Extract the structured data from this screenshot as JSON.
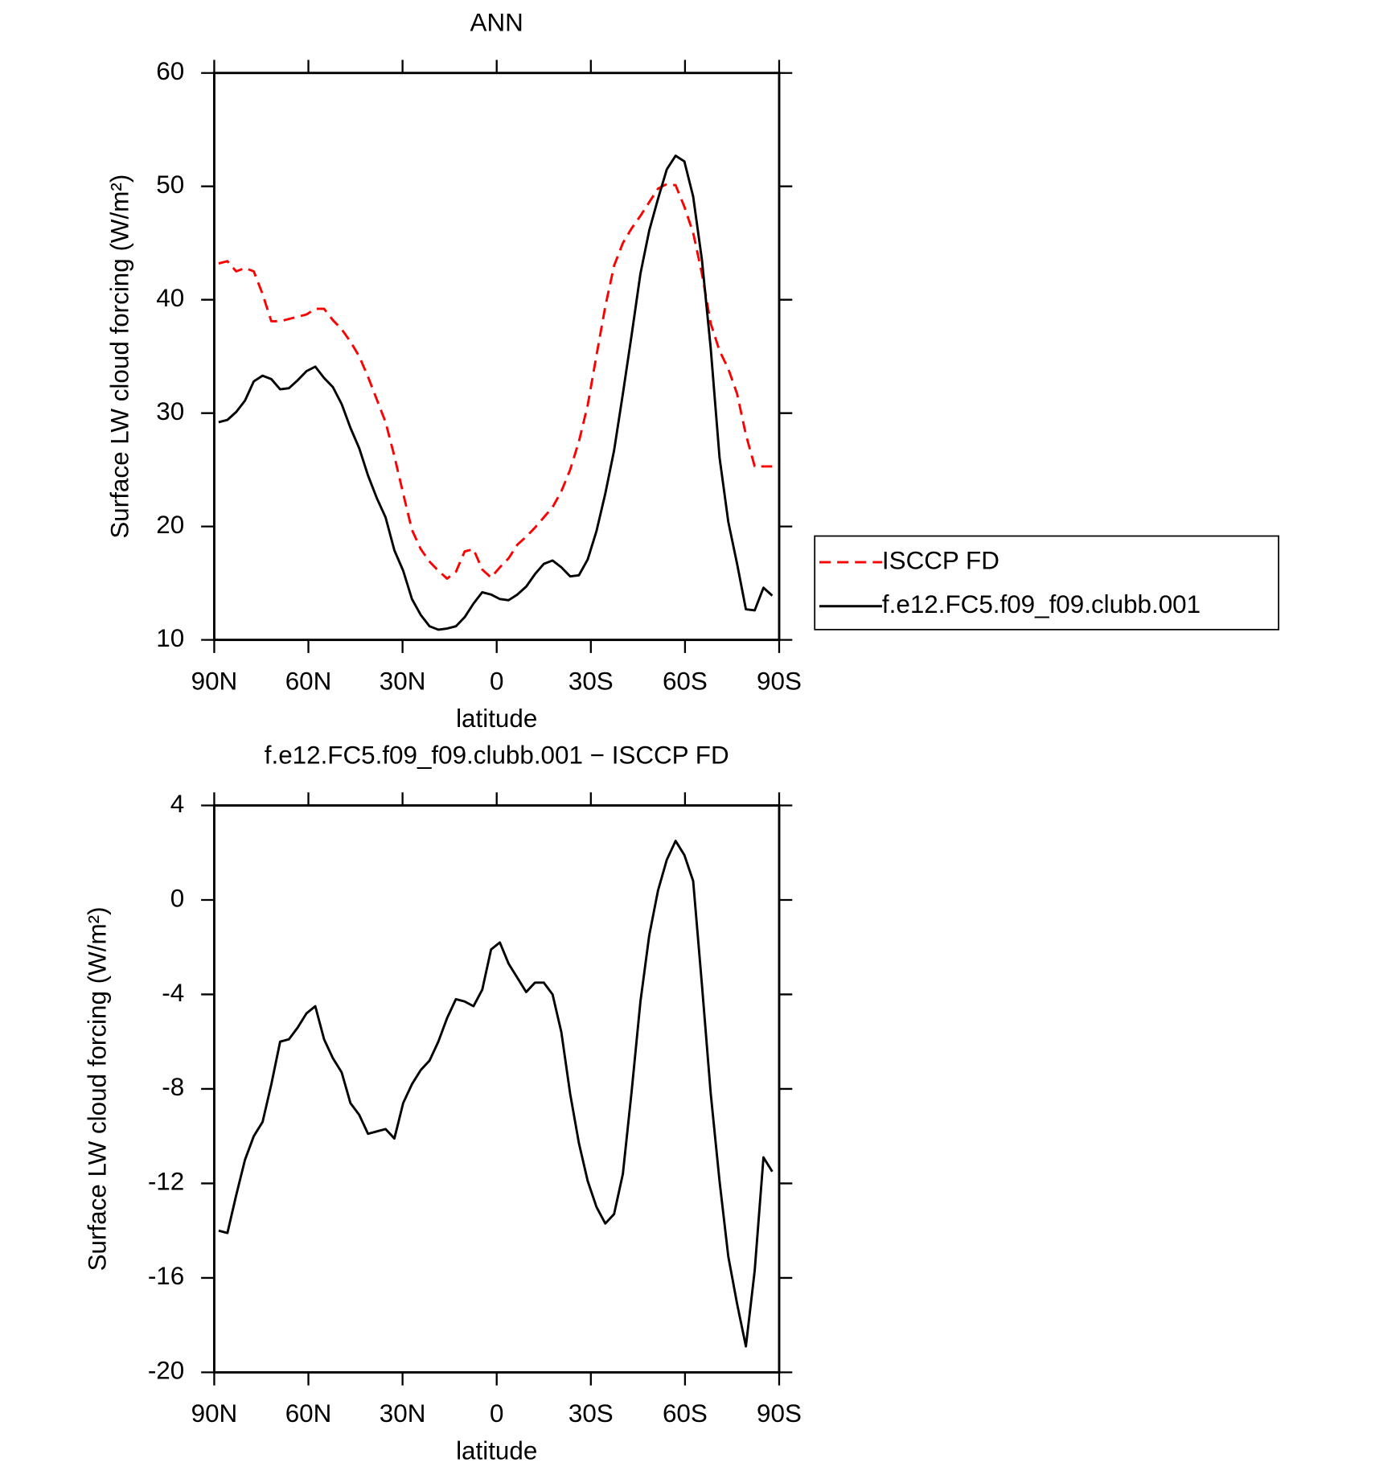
{
  "chart_data": [
    {
      "type": "line",
      "title": "ANN",
      "xlabel": "latitude",
      "ylabel": "Surface LW cloud forcing (W/m²)",
      "x": [
        88.6,
        85.8,
        83,
        80.2,
        77.4,
        74.6,
        71.8,
        69,
        66.2,
        63.4,
        60.6,
        57.8,
        55,
        52.2,
        49.4,
        46.6,
        43.8,
        41,
        38.2,
        35.4,
        32.6,
        29.8,
        27,
        24.2,
        21.4,
        18.6,
        15.8,
        13,
        10.2,
        7.4,
        4.6,
        1.8,
        -1,
        -3.8,
        -6.6,
        -9.4,
        -12.2,
        -15,
        -17.8,
        -20.6,
        -23.4,
        -26.2,
        -29,
        -31.8,
        -34.6,
        -37.4,
        -40.2,
        -43,
        -45.8,
        -48.6,
        -51.4,
        -54.2,
        -57,
        -59.8,
        -62.6,
        -65.4,
        -68.2,
        -71,
        -73.8,
        -76.6,
        -79.4,
        -82.2,
        -85,
        -87.8
      ],
      "xlim": [
        90,
        -90
      ],
      "xticks": [
        {
          "value": 90,
          "label": "90N"
        },
        {
          "value": 60,
          "label": "60N"
        },
        {
          "value": 30,
          "label": "30N"
        },
        0,
        {
          "value": -30,
          "label": "30S"
        },
        {
          "value": -60,
          "label": "60S"
        },
        {
          "value": -90,
          "label": "90S"
        }
      ],
      "ylim": [
        10,
        60
      ],
      "yticks": [
        10,
        20,
        30,
        40,
        50,
        60
      ],
      "grid": false,
      "legend": "outside-right",
      "series": [
        {
          "name": "ISCCP FD",
          "color": "#ff0000",
          "dash": true,
          "values": [
            43.2,
            43.4,
            42.5,
            42.8,
            42.5,
            40.5,
            38.1,
            38.1,
            38.3,
            38.5,
            38.7,
            39.2,
            39.2,
            38.2,
            37.4,
            36.3,
            35.0,
            33.2,
            31.2,
            29.2,
            26.2,
            22.9,
            19.7,
            18.0,
            16.9,
            16.1,
            15.4,
            16.0,
            17.8,
            18.0,
            16.2,
            15.5,
            16.4,
            17.2,
            18.4,
            19.1,
            19.9,
            20.8,
            21.7,
            23.1,
            25.0,
            27.5,
            30.7,
            35.1,
            39.4,
            43.0,
            45.0,
            46.3,
            47.4,
            48.6,
            49.8,
            50.2,
            50.1,
            48.2,
            45.9,
            42.3,
            37.9,
            35.5,
            33.9,
            31.7,
            28.1,
            25.3,
            25.3,
            25.3
          ]
        },
        {
          "name": "f.e12.FC5.f09_f09.clubb.001",
          "color": "#000000",
          "dash": false,
          "values": [
            29.2,
            29.4,
            30.1,
            31.1,
            32.8,
            33.3,
            33.0,
            32.1,
            32.2,
            32.9,
            33.7,
            34.1,
            33.1,
            32.3,
            30.8,
            28.7,
            26.9,
            24.5,
            22.5,
            20.8,
            17.9,
            16.1,
            13.6,
            12.2,
            11.2,
            10.9,
            11.0,
            11.2,
            12.0,
            13.2,
            14.2,
            14.0,
            13.6,
            13.5,
            14.0,
            14.7,
            15.8,
            16.7,
            17.0,
            16.4,
            15.6,
            15.7,
            17.1,
            19.6,
            22.9,
            26.7,
            31.7,
            36.9,
            42.3,
            46.1,
            48.9,
            51.5,
            52.7,
            52.2,
            49.1,
            43.5,
            35.7,
            26.1,
            20.4,
            16.7,
            12.7,
            12.6,
            14.6,
            13.9
          ]
        }
      ]
    },
    {
      "type": "line",
      "title": "f.e12.FC5.f09_f09.clubb.001 − ISCCP FD",
      "xlabel": "latitude",
      "ylabel": "Surface LW cloud forcing (W/m²)",
      "x": [
        88.6,
        85.8,
        83,
        80.2,
        77.4,
        74.6,
        71.8,
        69,
        66.2,
        63.4,
        60.6,
        57.8,
        55,
        52.2,
        49.4,
        46.6,
        43.8,
        41,
        38.2,
        35.4,
        32.6,
        29.8,
        27,
        24.2,
        21.4,
        18.6,
        15.8,
        13,
        10.2,
        7.4,
        4.6,
        1.8,
        -1,
        -3.8,
        -6.6,
        -9.4,
        -12.2,
        -15,
        -17.8,
        -20.6,
        -23.4,
        -26.2,
        -29,
        -31.8,
        -34.6,
        -37.4,
        -40.2,
        -43,
        -45.8,
        -48.6,
        -51.4,
        -54.2,
        -57,
        -59.8,
        -62.6,
        -65.4,
        -68.2,
        -71,
        -73.8,
        -76.6,
        -79.4,
        -82.2,
        -85,
        -87.8
      ],
      "xlim": [
        90,
        -90
      ],
      "xticks": [
        {
          "value": 90,
          "label": "90N"
        },
        {
          "value": 60,
          "label": "60N"
        },
        {
          "value": 30,
          "label": "30N"
        },
        0,
        {
          "value": -30,
          "label": "30S"
        },
        {
          "value": -60,
          "label": "60S"
        },
        {
          "value": -90,
          "label": "90S"
        }
      ],
      "ylim": [
        -20,
        4
      ],
      "yticks": [
        -20,
        -16,
        -12,
        -8,
        -4,
        0,
        4
      ],
      "grid": false,
      "series": [
        {
          "color": "#000000",
          "dash": false,
          "values": [
            -14.0,
            -14.1,
            -12.5,
            -11.0,
            -10.0,
            -9.4,
            -7.8,
            -6.0,
            -5.9,
            -5.4,
            -4.8,
            -4.5,
            -5.9,
            -6.7,
            -7.3,
            -8.6,
            -9.1,
            -9.9,
            -9.8,
            -9.7,
            -10.1,
            -8.6,
            -7.8,
            -7.2,
            -6.8,
            -6.0,
            -5.0,
            -4.2,
            -4.3,
            -4.5,
            -3.8,
            -2.1,
            -1.8,
            -2.7,
            -3.3,
            -3.9,
            -3.5,
            -3.5,
            -4.0,
            -5.6,
            -8.2,
            -10.3,
            -11.9,
            -13.0,
            -13.7,
            -13.3,
            -11.6,
            -8.1,
            -4.3,
            -1.5,
            0.4,
            1.7,
            2.5,
            1.9,
            0.8,
            -3.6,
            -8.2,
            -11.9,
            -15.1,
            -17.1,
            -18.9,
            -15.7,
            -10.9,
            -11.5
          ]
        }
      ]
    }
  ]
}
